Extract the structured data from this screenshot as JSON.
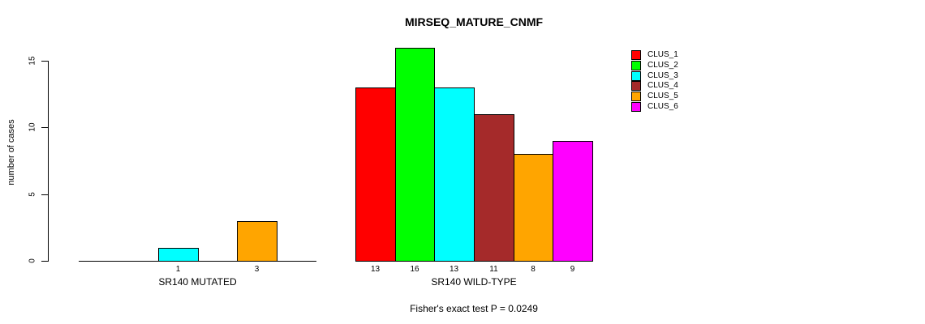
{
  "chart_data": {
    "type": "bar",
    "title": "MIRSEQ_MATURE_CNMF",
    "ylabel": "number of cases",
    "xlabel": "",
    "yticks": [
      0,
      5,
      10,
      15
    ],
    "ylim": [
      0,
      16
    ],
    "grid": false,
    "legend_position": "top-right",
    "categories": [
      "CLUS_1",
      "CLUS_2",
      "CLUS_3",
      "CLUS_4",
      "CLUS_5",
      "CLUS_6"
    ],
    "colors": [
      "#ff0000",
      "#00ff00",
      "#00ffff",
      "#a52a2a",
      "#ffa500",
      "#ff00ff"
    ],
    "groups": [
      {
        "label": "SR140 MUTATED",
        "values": [
          0,
          0,
          1,
          0,
          3,
          0
        ]
      },
      {
        "label": "SR140 WILD-TYPE",
        "values": [
          13,
          16,
          13,
          11,
          8,
          9
        ]
      }
    ],
    "caption": "Fisher's exact test P = 0.0249"
  }
}
